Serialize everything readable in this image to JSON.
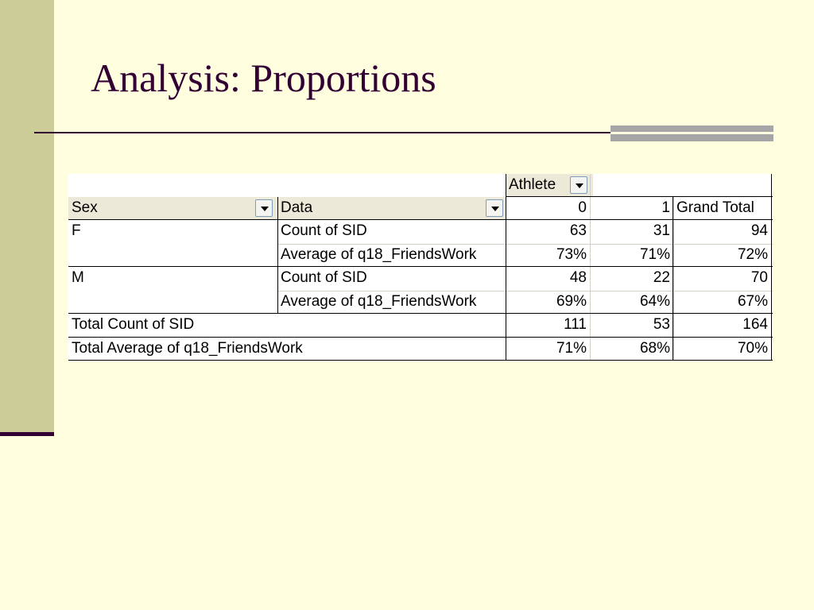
{
  "slide": {
    "title": "Analysis: Proportions"
  },
  "pivot": {
    "column_field": "Athlete",
    "row_field": "Sex",
    "data_field": "Data",
    "column_headers": [
      "0",
      "1",
      "Grand Total"
    ],
    "rows": [
      {
        "sex": "F",
        "measure": "Count of SID",
        "values": [
          "63",
          "31",
          "94"
        ]
      },
      {
        "sex": "",
        "measure": "Average of q18_FriendsWork",
        "values": [
          "73%",
          "71%",
          "72%"
        ]
      },
      {
        "sex": "M",
        "measure": "Count of SID",
        "values": [
          "48",
          "22",
          "70"
        ]
      },
      {
        "sex": "",
        "measure": "Average of q18_FriendsWork",
        "values": [
          "69%",
          "64%",
          "67%"
        ]
      }
    ],
    "totals": [
      {
        "label": "Total Count of SID",
        "values": [
          "111",
          "53",
          "164"
        ]
      },
      {
        "label": "Total Average of q18_FriendsWork",
        "values": [
          "71%",
          "68%",
          "70%"
        ]
      }
    ]
  },
  "colors": {
    "background": "#ffffe0",
    "accent_bar": "#cccc99",
    "title_text": "#330033",
    "rule_accent": "#a6a6a6"
  }
}
